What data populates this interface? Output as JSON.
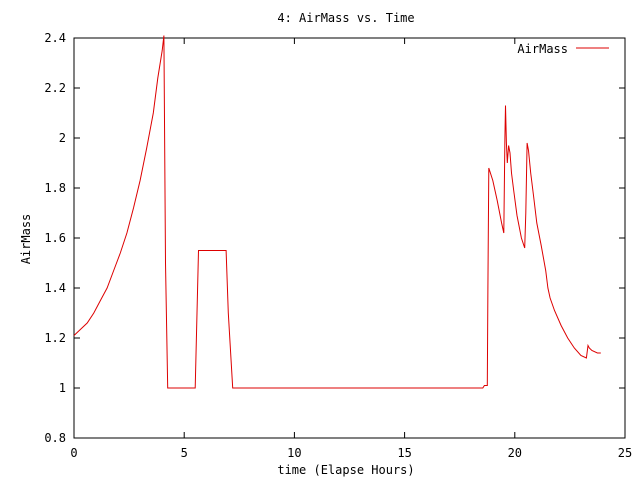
{
  "chart_data": {
    "type": "line",
    "title": "4: AirMass vs. Time",
    "xlabel": "time (Elapse Hours)",
    "ylabel": "AirMass",
    "xlim": [
      0,
      25
    ],
    "ylim": [
      0.8,
      2.4
    ],
    "xticks": [
      0,
      5,
      10,
      15,
      20,
      25
    ],
    "xtick_labels": [
      "0",
      "5",
      "10",
      "15",
      "20",
      "25"
    ],
    "yticks": [
      0.8,
      1,
      1.2,
      1.4,
      1.6,
      1.8,
      2,
      2.2,
      2.4
    ],
    "ytick_labels": [
      "0.8",
      "1",
      "1.2",
      "1.4",
      "1.6",
      "1.8",
      "2",
      "2.2",
      "2.4"
    ],
    "grid": false,
    "legend_position": "top-right",
    "series": [
      {
        "name": "AirMass",
        "color": "#dd0000",
        "x": [
          0.0,
          0.3,
          0.6,
          0.9,
          1.2,
          1.5,
          1.8,
          2.1,
          2.4,
          2.7,
          3.0,
          3.3,
          3.6,
          3.8,
          4.0,
          4.08,
          4.15,
          4.25,
          4.5,
          5.0,
          5.5,
          5.65,
          5.8,
          6.5,
          6.9,
          7.0,
          7.2,
          8,
          10,
          12,
          14,
          16,
          18,
          18.55,
          18.62,
          18.75,
          18.78,
          18.82,
          19.0,
          19.2,
          19.4,
          19.5,
          19.55,
          19.58,
          19.62,
          19.66,
          19.72,
          19.78,
          19.85,
          19.95,
          20.1,
          20.3,
          20.45,
          20.5,
          20.56,
          20.62,
          20.72,
          20.85,
          21.0,
          21.2,
          21.4,
          21.5,
          21.6,
          21.8,
          22.1,
          22.4,
          22.7,
          23.0,
          23.25,
          23.32,
          23.38,
          23.5,
          23.75,
          23.9
        ],
        "y": [
          1.21,
          1.235,
          1.26,
          1.3,
          1.35,
          1.4,
          1.47,
          1.54,
          1.62,
          1.72,
          1.83,
          1.96,
          2.1,
          2.24,
          2.35,
          2.41,
          1.5,
          1.0,
          1.0,
          1.0,
          1.0,
          1.55,
          1.55,
          1.55,
          1.55,
          1.3,
          1.0,
          1.0,
          1.0,
          1.0,
          1.0,
          1.0,
          1.0,
          1.0,
          1.01,
          1.01,
          1.4,
          1.88,
          1.83,
          1.75,
          1.66,
          1.62,
          2.0,
          2.13,
          1.98,
          1.9,
          1.97,
          1.94,
          1.86,
          1.79,
          1.69,
          1.6,
          1.56,
          1.7,
          1.98,
          1.95,
          1.86,
          1.77,
          1.66,
          1.57,
          1.47,
          1.4,
          1.36,
          1.31,
          1.25,
          1.2,
          1.16,
          1.13,
          1.12,
          1.17,
          1.16,
          1.15,
          1.14,
          1.14
        ]
      }
    ]
  }
}
